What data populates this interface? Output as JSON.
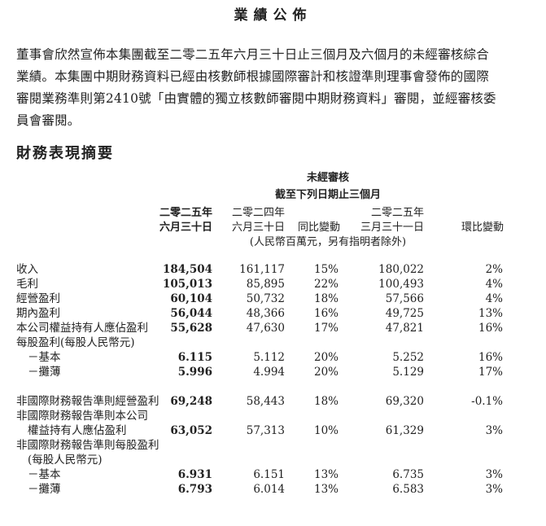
{
  "title": "業績公佈",
  "intro_lines": [
    "董事會欣然宣佈本集團截至二零二五年六月三十日止三個月及六個月的未經審核綜合",
    "業績。本集團中期財務資料已經由核數師根據國際審計和核證準則理事會發佈的國際",
    "審閱業務準則第2410號「由實體的獨立核數師審閱中期財務資料」審閱，並經審核委",
    "員會審閱。"
  ],
  "section_title": "財務表現摘要",
  "table": {
    "header_top": "未經審核",
    "header_period": "截至下列日期止三個月",
    "columns": [
      {
        "year": "二零二五年",
        "date": "六月三十日"
      },
      {
        "year": "二零二四年",
        "date": "六月三十日"
      },
      {
        "year": "",
        "date": "同比變動"
      },
      {
        "year": "二零二五年",
        "date": "三月三十一日"
      },
      {
        "year": "",
        "date": "環比變動"
      }
    ],
    "unit_note": "(人民幣百萬元，另有指明者除外)",
    "rows": [
      {
        "label": "收入",
        "values": [
          "184,504",
          "161,117",
          "15%",
          "180,022",
          "2%"
        ]
      },
      {
        "label": "毛利",
        "values": [
          "105,013",
          "85,895",
          "22%",
          "100,493",
          "4%"
        ]
      },
      {
        "label": "經營盈利",
        "values": [
          "60,104",
          "50,732",
          "18%",
          "57,566",
          "4%"
        ]
      },
      {
        "label": "期內盈利",
        "values": [
          "56,044",
          "48,366",
          "16%",
          "49,725",
          "13%"
        ]
      },
      {
        "label": "本公司權益持有人應佔盈利",
        "values": [
          "55,628",
          "47,630",
          "17%",
          "47,821",
          "16%"
        ]
      },
      {
        "label": "每股盈利(每股人民幣元)",
        "values": []
      },
      {
        "label": "－基本",
        "indent": true,
        "values": [
          "6.115",
          "5.112",
          "20%",
          "5.252",
          "16%"
        ]
      },
      {
        "label": "－攤薄",
        "indent": true,
        "values": [
          "5.996",
          "4.994",
          "20%",
          "5.129",
          "17%"
        ]
      },
      {
        "label": "",
        "values": []
      },
      {
        "label": "非國際財務報告準則經營盈利",
        "values": [
          "69,248",
          "58,443",
          "18%",
          "69,320",
          "-0.1%"
        ]
      },
      {
        "label": "非國際財務報告準則本公司",
        "values": []
      },
      {
        "label": "權益持有人應佔盈利",
        "indent": true,
        "values": [
          "63,052",
          "57,313",
          "10%",
          "61,329",
          "3%"
        ]
      },
      {
        "label": "非國際財務報告準則每股盈利",
        "values": []
      },
      {
        "label": "(每股人民幣元)",
        "indent": true,
        "values": []
      },
      {
        "label": "－基本",
        "indent": true,
        "values": [
          "6.931",
          "6.151",
          "13%",
          "6.735",
          "3%"
        ]
      },
      {
        "label": "－攤薄",
        "indent": true,
        "values": [
          "6.793",
          "6.014",
          "13%",
          "6.583",
          "3%"
        ]
      }
    ]
  }
}
